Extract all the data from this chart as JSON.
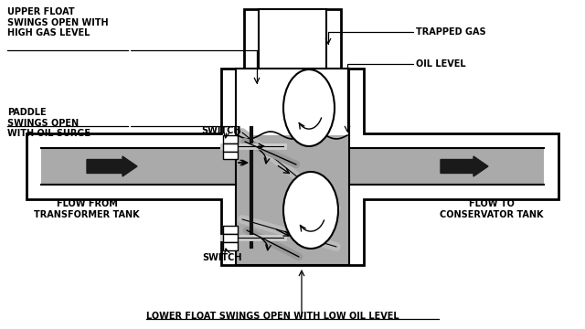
{
  "bg_color": "#ffffff",
  "gray_color": "#aaaaaa",
  "black": "#000000",
  "white": "#ffffff",
  "labels": {
    "upper_float": "UPPER FLOAT\nSWINGS OPEN WITH\nHIGH GAS LEVEL",
    "paddle": "PADDLE\nSWINGS OPEN\nWITH OIL SURGE",
    "switch_top": "SWITCH",
    "switch_bottom": "SWITCH",
    "trapped_gas": "TRAPPED GAS",
    "oil_level": "OIL LEVEL",
    "flow_from": "FLOW FROM\nTRANSFORMER TANK",
    "flow_to": "FLOW TO\nCONSERVATOR TANK",
    "lower_float": "LOWER FLOAT SWINGS OPEN WITH LOW OIL LEVEL"
  },
  "figsize": [
    6.4,
    3.6
  ],
  "dpi": 100
}
